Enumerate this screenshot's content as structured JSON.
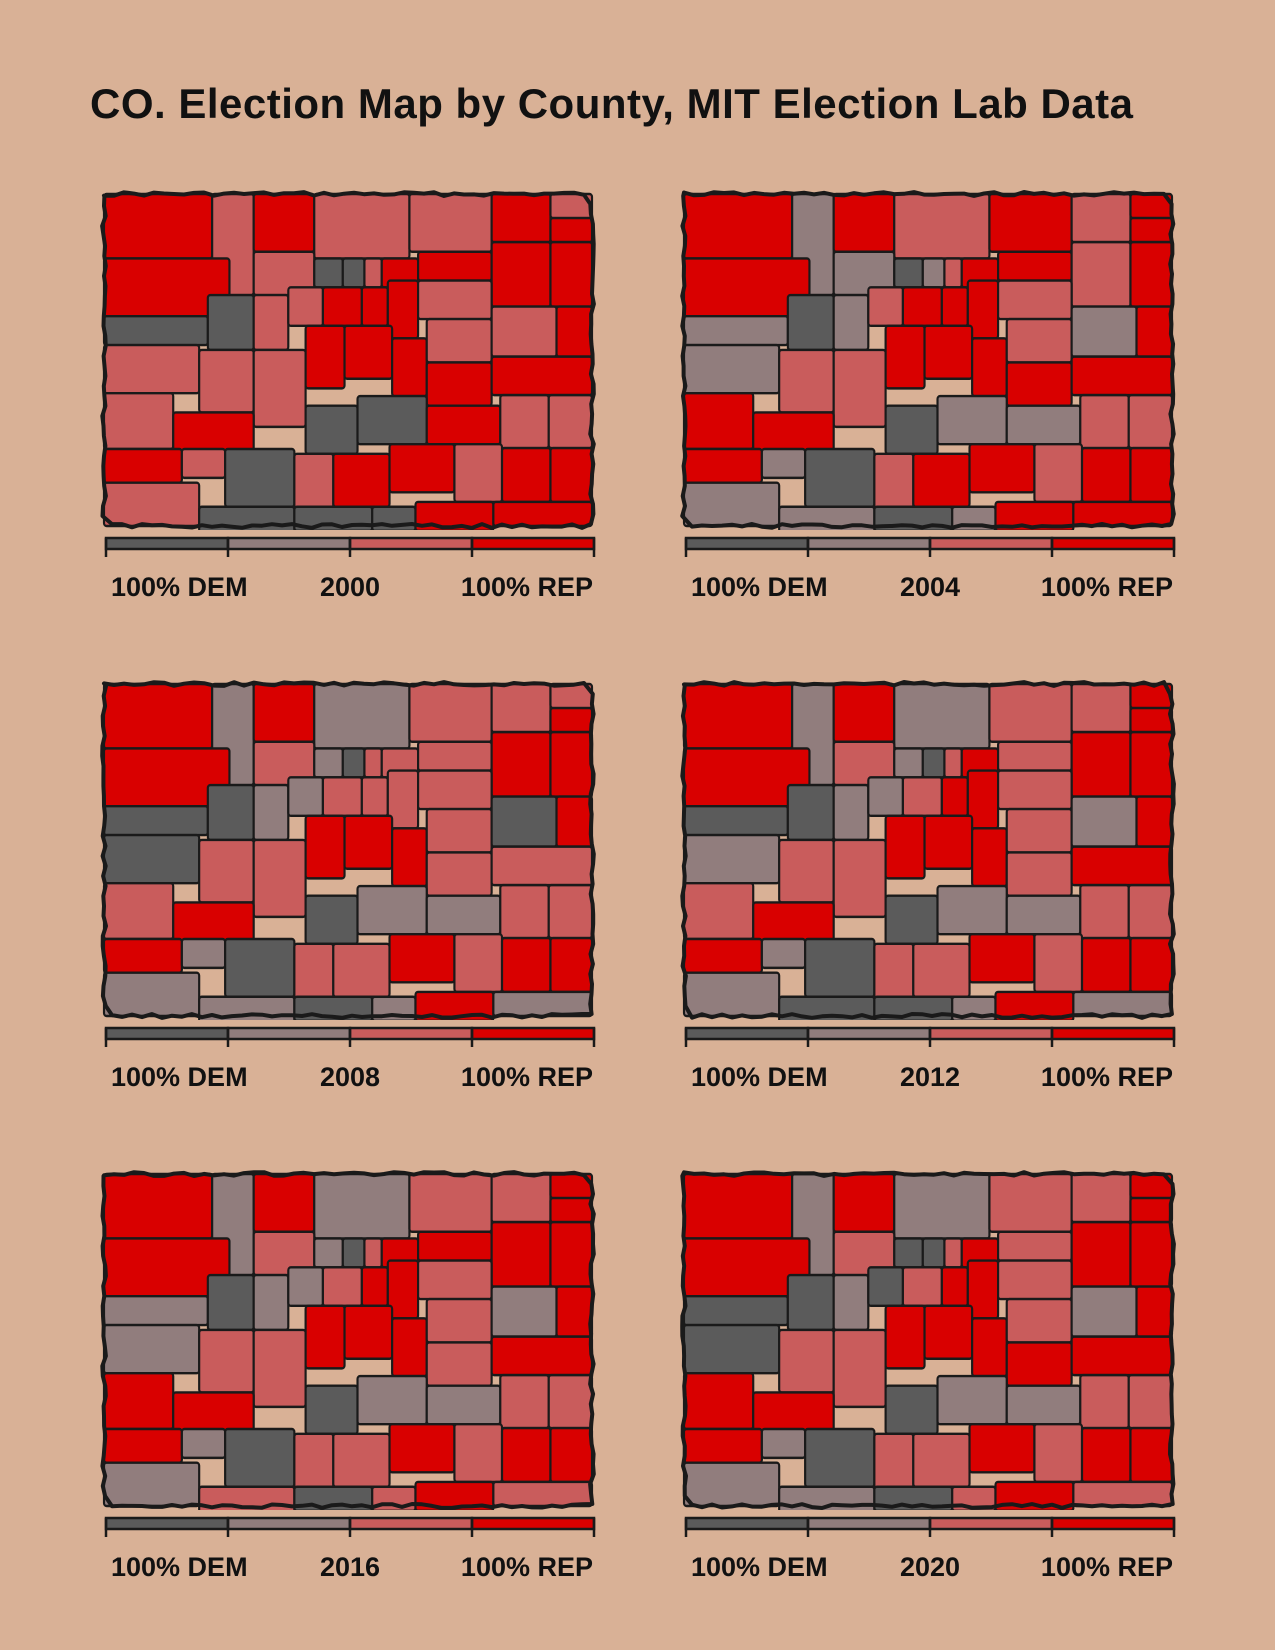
{
  "title": "CO. Election Map by County, MIT Election Lab Data",
  "colors": {
    "background": "#d9b196",
    "dem_strong": "#5b5b5b",
    "dem_lean": "#917d7d",
    "rep_lean": "#c95c5c",
    "rep_strong": "#d90000",
    "outline": "#1a1a1a"
  },
  "legend_scale": [
    "dem_strong",
    "dem_lean",
    "rep_lean",
    "rep_strong"
  ],
  "panels": [
    {
      "year": "2000",
      "left_label": "100% DEM",
      "right_label": "100% REP",
      "counties": [
        "R",
        "L",
        "R",
        "L",
        "L",
        "R",
        "L",
        "R",
        "R",
        "L",
        "D",
        "D",
        "L",
        "R",
        "R",
        "R",
        "R",
        "D",
        "D",
        "L",
        "L",
        "R",
        "R",
        "R",
        "L",
        "L",
        "L",
        "L",
        "R",
        "R",
        "R",
        "L",
        "L",
        "R",
        "R",
        "R",
        "L",
        "R",
        "D",
        "D",
        "R",
        "L",
        "L",
        "R",
        "L",
        "D",
        "L",
        "R",
        "R",
        "L",
        "R",
        "R",
        "L",
        "D",
        "D",
        "D",
        "R",
        "R"
      ]
    },
    {
      "year": "2004",
      "left_label": "100% DEM",
      "right_label": "100% REP",
      "counties": [
        "R",
        "G",
        "R",
        "L",
        "R",
        "L",
        "R",
        "R",
        "R",
        "G",
        "D",
        "G",
        "L",
        "R",
        "R",
        "L",
        "R",
        "G",
        "D",
        "G",
        "L",
        "R",
        "R",
        "R",
        "L",
        "G",
        "L",
        "L",
        "R",
        "R",
        "R",
        "L",
        "G",
        "R",
        "R",
        "R",
        "R",
        "R",
        "D",
        "G",
        "G",
        "L",
        "L",
        "R",
        "G",
        "D",
        "L",
        "R",
        "R",
        "L",
        "R",
        "R",
        "G",
        "G",
        "D",
        "G",
        "R",
        "R"
      ]
    },
    {
      "year": "2008",
      "left_label": "100% DEM",
      "right_label": "100% REP",
      "counties": [
        "R",
        "G",
        "R",
        "G",
        "L",
        "L",
        "L",
        "R",
        "R",
        "L",
        "G",
        "D",
        "L",
        "L",
        "L",
        "R",
        "R",
        "D",
        "D",
        "G",
        "G",
        "L",
        "L",
        "L",
        "L",
        "D",
        "L",
        "L",
        "R",
        "R",
        "R",
        "L",
        "D",
        "R",
        "L",
        "L",
        "L",
        "R",
        "D",
        "G",
        "G",
        "L",
        "L",
        "R",
        "G",
        "D",
        "L",
        "L",
        "R",
        "L",
        "R",
        "R",
        "G",
        "G",
        "D",
        "G",
        "R",
        "G"
      ]
    },
    {
      "year": "2012",
      "left_label": "100% DEM",
      "right_label": "100% REP",
      "counties": [
        "R",
        "G",
        "R",
        "G",
        "L",
        "L",
        "R",
        "R",
        "R",
        "L",
        "G",
        "D",
        "L",
        "R",
        "L",
        "R",
        "R",
        "D",
        "D",
        "G",
        "G",
        "L",
        "R",
        "R",
        "L",
        "G",
        "L",
        "L",
        "R",
        "R",
        "R",
        "L",
        "G",
        "R",
        "L",
        "R",
        "L",
        "R",
        "D",
        "G",
        "G",
        "L",
        "L",
        "R",
        "G",
        "D",
        "L",
        "L",
        "R",
        "L",
        "R",
        "R",
        "G",
        "D",
        "D",
        "G",
        "R",
        "G"
      ]
    },
    {
      "year": "2016",
      "left_label": "100% DEM",
      "right_label": "100% REP",
      "counties": [
        "R",
        "G",
        "R",
        "G",
        "L",
        "L",
        "R",
        "R",
        "R",
        "L",
        "G",
        "D",
        "L",
        "R",
        "R",
        "R",
        "R",
        "G",
        "D",
        "G",
        "G",
        "L",
        "R",
        "R",
        "L",
        "G",
        "L",
        "L",
        "R",
        "R",
        "R",
        "L",
        "G",
        "R",
        "L",
        "R",
        "R",
        "R",
        "D",
        "G",
        "G",
        "L",
        "L",
        "R",
        "G",
        "D",
        "L",
        "L",
        "R",
        "L",
        "R",
        "R",
        "G",
        "L",
        "D",
        "L",
        "R",
        "L"
      ]
    },
    {
      "year": "2020",
      "left_label": "100% DEM",
      "right_label": "100% REP",
      "counties": [
        "R",
        "G",
        "R",
        "G",
        "L",
        "L",
        "R",
        "R",
        "R",
        "L",
        "D",
        "D",
        "L",
        "R",
        "L",
        "R",
        "R",
        "D",
        "D",
        "G",
        "D",
        "L",
        "R",
        "R",
        "L",
        "D",
        "L",
        "L",
        "R",
        "R",
        "R",
        "L",
        "G",
        "R",
        "R",
        "R",
        "R",
        "R",
        "D",
        "G",
        "G",
        "L",
        "L",
        "R",
        "G",
        "D",
        "L",
        "L",
        "R",
        "L",
        "R",
        "R",
        "G",
        "G",
        "D",
        "L",
        "R",
        "L"
      ]
    }
  ]
}
